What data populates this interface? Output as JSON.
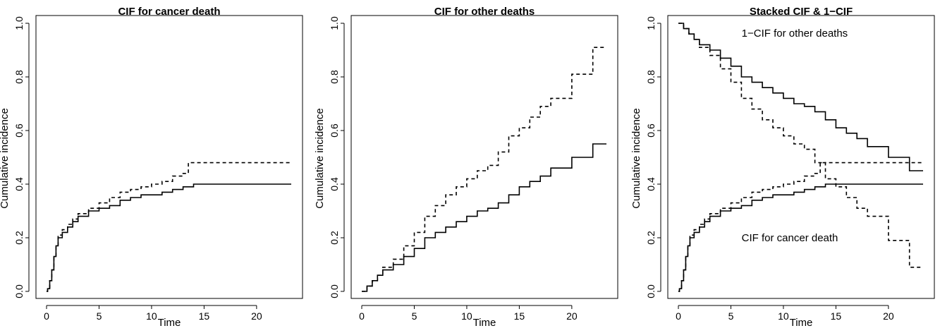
{
  "chart_data": [
    {
      "type": "line",
      "step": true,
      "title": "CIF for cancer death",
      "xlabel": "Time",
      "ylabel": "Cumulative incidence",
      "xlim": [
        0,
        23.5
      ],
      "ylim": [
        0,
        1
      ],
      "xticks": [
        0,
        5,
        10,
        15,
        20
      ],
      "yticks": [
        0.0,
        0.2,
        0.4,
        0.6,
        0.8,
        1.0
      ],
      "xtick_labels": [
        "0",
        "5",
        "10",
        "15",
        "20"
      ],
      "ytick_labels": [
        "0.0",
        "0.2",
        "0.4",
        "0.6",
        "0.8",
        "1.0"
      ],
      "series": [
        {
          "style": "solid",
          "points": [
            [
              0,
              0
            ],
            [
              0.1,
              0.01
            ],
            [
              0.3,
              0.04
            ],
            [
              0.5,
              0.08
            ],
            [
              0.7,
              0.13
            ],
            [
              0.9,
              0.17
            ],
            [
              1.1,
              0.2
            ],
            [
              1.5,
              0.22
            ],
            [
              2,
              0.24
            ],
            [
              2.5,
              0.26
            ],
            [
              3,
              0.28
            ],
            [
              4,
              0.3
            ],
            [
              5,
              0.31
            ],
            [
              6,
              0.32
            ],
            [
              7,
              0.34
            ],
            [
              8,
              0.35
            ],
            [
              9,
              0.36
            ],
            [
              10,
              0.36
            ],
            [
              11,
              0.37
            ],
            [
              12,
              0.38
            ],
            [
              13,
              0.39
            ],
            [
              14,
              0.4
            ],
            [
              23.3,
              0.4
            ]
          ]
        },
        {
          "style": "dashed",
          "points": [
            [
              0,
              0
            ],
            [
              0.1,
              0.01
            ],
            [
              0.3,
              0.04
            ],
            [
              0.5,
              0.08
            ],
            [
              0.7,
              0.13
            ],
            [
              0.9,
              0.17
            ],
            [
              1.1,
              0.21
            ],
            [
              1.5,
              0.23
            ],
            [
              2,
              0.25
            ],
            [
              2.5,
              0.27
            ],
            [
              3,
              0.29
            ],
            [
              4,
              0.31
            ],
            [
              5,
              0.33
            ],
            [
              6,
              0.35
            ],
            [
              7,
              0.37
            ],
            [
              8,
              0.38
            ],
            [
              9,
              0.39
            ],
            [
              10,
              0.4
            ],
            [
              11,
              0.41
            ],
            [
              12,
              0.43
            ],
            [
              13,
              0.44
            ],
            [
              13.5,
              0.48
            ],
            [
              23.3,
              0.48
            ]
          ]
        }
      ]
    },
    {
      "type": "line",
      "step": true,
      "title": "CIF for other deaths",
      "xlabel": "Time",
      "ylabel": "Cumulative incidence",
      "xlim": [
        0,
        23.5
      ],
      "ylim": [
        0,
        1
      ],
      "xticks": [
        0,
        5,
        10,
        15,
        20
      ],
      "yticks": [
        0.0,
        0.2,
        0.4,
        0.6,
        0.8,
        1.0
      ],
      "xtick_labels": [
        "0",
        "5",
        "10",
        "15",
        "20"
      ],
      "ytick_labels": [
        "0.0",
        "0.2",
        "0.4",
        "0.6",
        "0.8",
        "1.0"
      ],
      "series": [
        {
          "style": "solid",
          "points": [
            [
              0,
              0
            ],
            [
              0.5,
              0.02
            ],
            [
              1,
              0.04
            ],
            [
              1.5,
              0.06
            ],
            [
              2,
              0.08
            ],
            [
              3,
              0.1
            ],
            [
              4,
              0.13
            ],
            [
              5,
              0.16
            ],
            [
              6,
              0.2
            ],
            [
              7,
              0.22
            ],
            [
              8,
              0.24
            ],
            [
              9,
              0.26
            ],
            [
              10,
              0.28
            ],
            [
              11,
              0.3
            ],
            [
              12,
              0.31
            ],
            [
              13,
              0.33
            ],
            [
              14,
              0.36
            ],
            [
              15,
              0.39
            ],
            [
              16,
              0.41
            ],
            [
              17,
              0.43
            ],
            [
              18,
              0.46
            ],
            [
              20,
              0.5
            ],
            [
              22,
              0.55
            ],
            [
              23.3,
              0.55
            ]
          ]
        },
        {
          "style": "dashed",
          "points": [
            [
              0,
              0
            ],
            [
              0.5,
              0.02
            ],
            [
              1,
              0.04
            ],
            [
              1.5,
              0.06
            ],
            [
              2,
              0.09
            ],
            [
              3,
              0.12
            ],
            [
              4,
              0.17
            ],
            [
              5,
              0.22
            ],
            [
              6,
              0.28
            ],
            [
              7,
              0.32
            ],
            [
              8,
              0.36
            ],
            [
              9,
              0.39
            ],
            [
              10,
              0.42
            ],
            [
              11,
              0.45
            ],
            [
              12,
              0.47
            ],
            [
              13,
              0.52
            ],
            [
              14,
              0.58
            ],
            [
              15,
              0.61
            ],
            [
              16,
              0.65
            ],
            [
              17,
              0.69
            ],
            [
              18,
              0.72
            ],
            [
              20,
              0.81
            ],
            [
              22,
              0.91
            ],
            [
              23.3,
              0.91
            ]
          ]
        }
      ]
    },
    {
      "type": "line",
      "step": true,
      "title": "Stacked CIF & 1−CIF",
      "xlabel": "Time",
      "ylabel": "Cumulative incidence",
      "xlim": [
        0,
        23.5
      ],
      "ylim": [
        0,
        1
      ],
      "xticks": [
        0,
        5,
        10,
        15,
        20
      ],
      "yticks": [
        0.0,
        0.2,
        0.4,
        0.6,
        0.8,
        1.0
      ],
      "xtick_labels": [
        "0",
        "5",
        "10",
        "15",
        "20"
      ],
      "ytick_labels": [
        "0.0",
        "0.2",
        "0.4",
        "0.6",
        "0.8",
        "1.0"
      ],
      "annotations": [
        {
          "text": "1−CIF for other deaths",
          "x": 3,
          "y": 0.95
        },
        {
          "text": "CIF for cancer death",
          "x": 3,
          "y": 0.2
        }
      ],
      "series": [
        {
          "style": "solid",
          "points": [
            [
              0,
              0
            ],
            [
              0.1,
              0.01
            ],
            [
              0.3,
              0.04
            ],
            [
              0.5,
              0.08
            ],
            [
              0.7,
              0.13
            ],
            [
              0.9,
              0.17
            ],
            [
              1.1,
              0.2
            ],
            [
              1.5,
              0.22
            ],
            [
              2,
              0.24
            ],
            [
              2.5,
              0.26
            ],
            [
              3,
              0.28
            ],
            [
              4,
              0.3
            ],
            [
              5,
              0.31
            ],
            [
              6,
              0.32
            ],
            [
              7,
              0.34
            ],
            [
              8,
              0.35
            ],
            [
              9,
              0.36
            ],
            [
              10,
              0.36
            ],
            [
              11,
              0.37
            ],
            [
              12,
              0.38
            ],
            [
              13,
              0.39
            ],
            [
              14,
              0.4
            ],
            [
              23.3,
              0.4
            ]
          ]
        },
        {
          "style": "dashed",
          "points": [
            [
              0,
              0
            ],
            [
              0.1,
              0.01
            ],
            [
              0.3,
              0.04
            ],
            [
              0.5,
              0.08
            ],
            [
              0.7,
              0.13
            ],
            [
              0.9,
              0.17
            ],
            [
              1.1,
              0.21
            ],
            [
              1.5,
              0.23
            ],
            [
              2,
              0.25
            ],
            [
              2.5,
              0.27
            ],
            [
              3,
              0.29
            ],
            [
              4,
              0.31
            ],
            [
              5,
              0.33
            ],
            [
              6,
              0.35
            ],
            [
              7,
              0.37
            ],
            [
              8,
              0.38
            ],
            [
              9,
              0.39
            ],
            [
              10,
              0.4
            ],
            [
              11,
              0.41
            ],
            [
              12,
              0.43
            ],
            [
              13,
              0.44
            ],
            [
              13.5,
              0.48
            ],
            [
              23.3,
              0.48
            ]
          ]
        },
        {
          "style": "solid",
          "points": [
            [
              0,
              1
            ],
            [
              0.5,
              0.98
            ],
            [
              1,
              0.96
            ],
            [
              1.5,
              0.94
            ],
            [
              2,
              0.92
            ],
            [
              3,
              0.9
            ],
            [
              4,
              0.87
            ],
            [
              5,
              0.84
            ],
            [
              6,
              0.8
            ],
            [
              7,
              0.78
            ],
            [
              8,
              0.76
            ],
            [
              9,
              0.74
            ],
            [
              10,
              0.72
            ],
            [
              11,
              0.7
            ],
            [
              12,
              0.69
            ],
            [
              13,
              0.67
            ],
            [
              14,
              0.64
            ],
            [
              15,
              0.61
            ],
            [
              16,
              0.59
            ],
            [
              17,
              0.57
            ],
            [
              18,
              0.54
            ],
            [
              20,
              0.5
            ],
            [
              22,
              0.45
            ],
            [
              23.3,
              0.45
            ]
          ]
        },
        {
          "style": "dashed",
          "points": [
            [
              0,
              1
            ],
            [
              0.5,
              0.98
            ],
            [
              1,
              0.96
            ],
            [
              1.5,
              0.94
            ],
            [
              2,
              0.91
            ],
            [
              3,
              0.88
            ],
            [
              4,
              0.83
            ],
            [
              5,
              0.78
            ],
            [
              6,
              0.72
            ],
            [
              7,
              0.68
            ],
            [
              8,
              0.64
            ],
            [
              9,
              0.61
            ],
            [
              10,
              0.58
            ],
            [
              11,
              0.55
            ],
            [
              12,
              0.53
            ],
            [
              13,
              0.48
            ],
            [
              14,
              0.42
            ],
            [
              15,
              0.39
            ],
            [
              16,
              0.35
            ],
            [
              17,
              0.31
            ],
            [
              18,
              0.28
            ],
            [
              20,
              0.19
            ],
            [
              22,
              0.09
            ],
            [
              23.3,
              0.09
            ]
          ]
        }
      ]
    }
  ]
}
